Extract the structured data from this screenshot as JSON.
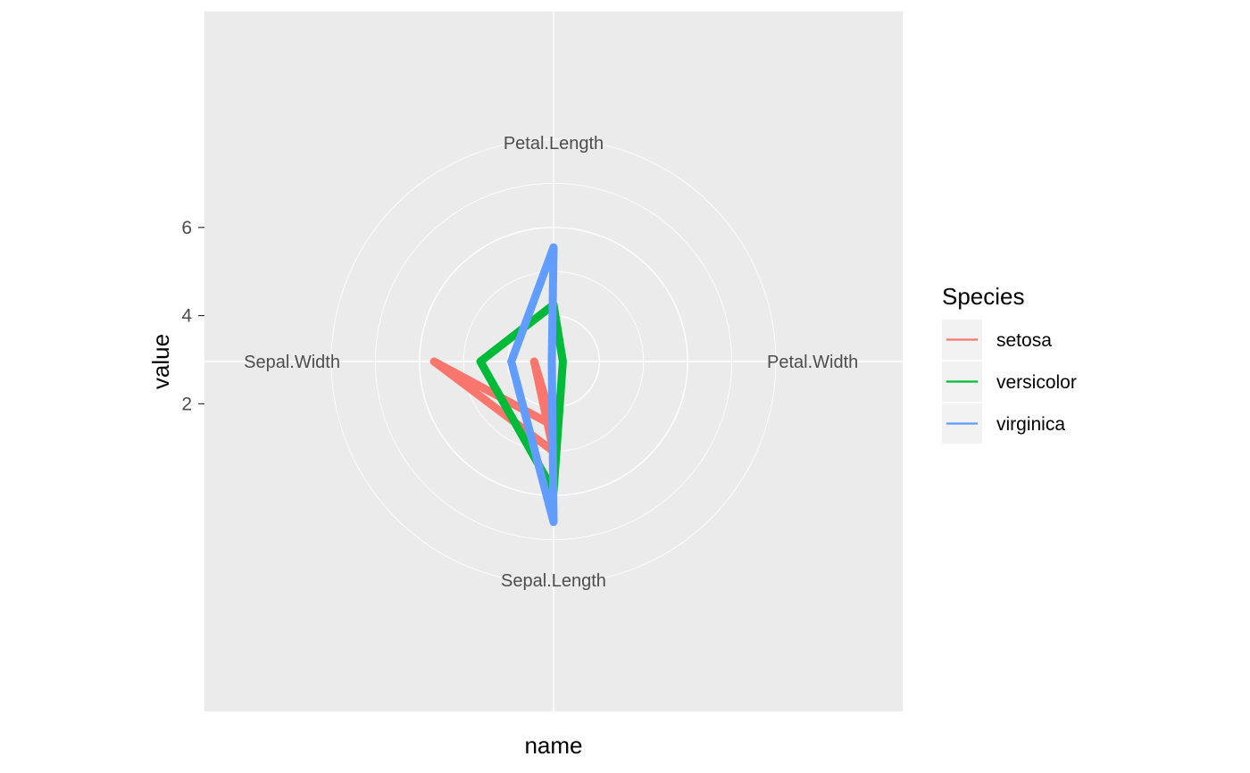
{
  "chart_data": {
    "type": "radar",
    "coord": "polar",
    "xlabel": "name",
    "ylabel": "value",
    "categories": [
      "Petal.Length",
      "Petal.Width",
      "Sepal.Length",
      "Sepal.Width"
    ],
    "y_ticks": [
      2,
      4,
      6
    ],
    "ylim": [
      0,
      8
    ],
    "grid": true,
    "series": [
      {
        "name": "setosa",
        "color": "#F8766D",
        "values": [
          1.5,
          0.25,
          5.0,
          3.4
        ]
      },
      {
        "name": "versicolor",
        "color": "#00BA38",
        "values": [
          4.25,
          1.3,
          5.9,
          2.75
        ]
      },
      {
        "name": "virginica",
        "color": "#619CFF",
        "values": [
          5.55,
          2.0,
          6.6,
          3.0
        ]
      }
    ],
    "legend": {
      "title": "Species",
      "position": "right"
    }
  }
}
